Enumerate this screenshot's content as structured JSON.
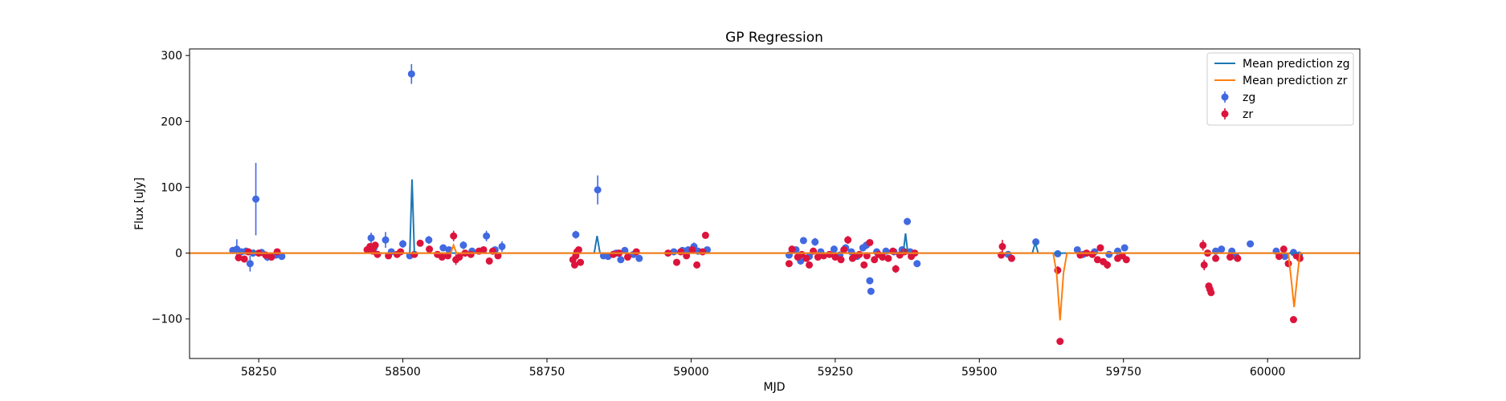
{
  "chart_data": {
    "type": "scatter",
    "title": "GP Regression",
    "xlabel": "MJD",
    "ylabel": "Flux [uJy]",
    "xlim": [
      58130,
      60160
    ],
    "ylim": [
      -160,
      310
    ],
    "xticks": [
      58250,
      58500,
      58750,
      59000,
      59250,
      59500,
      59750,
      60000
    ],
    "yticks": [
      -100,
      0,
      100,
      200,
      300
    ],
    "grid": false,
    "legend_position": "top-right",
    "series": [
      {
        "name": "Mean prediction zg",
        "kind": "line",
        "color": "#1f77b4",
        "x": [
          58130,
          58238,
          58242,
          58246,
          58505,
          58512,
          58516,
          58520,
          58832,
          58837,
          58842,
          59368,
          59372,
          59376,
          59592,
          59597,
          59602,
          60160
        ],
        "y": [
          0,
          0,
          4,
          0,
          0,
          0,
          112,
          0,
          0,
          26,
          0,
          0,
          30,
          0,
          0,
          16,
          0,
          0
        ]
      },
      {
        "name": "Mean prediction zr",
        "kind": "line",
        "color": "#ff7f0e",
        "x": [
          58130,
          58583,
          58588,
          58593,
          59628,
          59634,
          59640,
          59646,
          59652,
          60036,
          60041,
          60046,
          60051,
          60056,
          60160
        ],
        "y": [
          0,
          0,
          12,
          0,
          0,
          -30,
          -102,
          -30,
          0,
          0,
          -40,
          -82,
          -40,
          0,
          0
        ]
      },
      {
        "name": "zg",
        "kind": "points",
        "color": "#4169e1",
        "points": [
          [
            58205,
            4,
            4
          ],
          [
            58212,
            6,
            15
          ],
          [
            58220,
            2,
            4
          ],
          [
            58228,
            3,
            4
          ],
          [
            58235,
            -16,
            12
          ],
          [
            58240,
            0,
            4
          ],
          [
            58245,
            82,
            55
          ],
          [
            58255,
            1,
            3
          ],
          [
            58265,
            -6,
            6
          ],
          [
            58280,
            -3,
            4
          ],
          [
            58290,
            -5,
            4
          ],
          [
            58445,
            23,
            8
          ],
          [
            58450,
            8,
            4
          ],
          [
            58470,
            20,
            12
          ],
          [
            58480,
            2,
            4
          ],
          [
            58500,
            14,
            6
          ],
          [
            58512,
            -4,
            4
          ],
          [
            58515,
            272,
            15
          ],
          [
            58545,
            20,
            6
          ],
          [
            58570,
            8,
            4
          ],
          [
            58580,
            5,
            4
          ],
          [
            58605,
            12,
            6
          ],
          [
            58620,
            3,
            4
          ],
          [
            58645,
            26,
            8
          ],
          [
            58660,
            5,
            4
          ],
          [
            58672,
            10,
            8
          ],
          [
            58800,
            28,
            6
          ],
          [
            58838,
            96,
            22
          ],
          [
            58848,
            -4,
            3
          ],
          [
            58856,
            -5,
            3
          ],
          [
            58870,
            0,
            4
          ],
          [
            58878,
            -10,
            4
          ],
          [
            58885,
            4,
            4
          ],
          [
            58900,
            -2,
            4
          ],
          [
            58910,
            -8,
            4
          ],
          [
            58970,
            2,
            4
          ],
          [
            58985,
            4,
            4
          ],
          [
            58995,
            5,
            4
          ],
          [
            59005,
            10,
            6
          ],
          [
            59012,
            3,
            4
          ],
          [
            59028,
            5,
            4
          ],
          [
            59170,
            -3,
            4
          ],
          [
            59182,
            5,
            4
          ],
          [
            59190,
            -12,
            4
          ],
          [
            59195,
            19,
            5
          ],
          [
            59205,
            -5,
            4
          ],
          [
            59215,
            17,
            6
          ],
          [
            59225,
            2,
            4
          ],
          [
            59248,
            6,
            4
          ],
          [
            59258,
            -3,
            4
          ],
          [
            59268,
            8,
            4
          ],
          [
            59278,
            2,
            4
          ],
          [
            59288,
            -5,
            4
          ],
          [
            59298,
            8,
            4
          ],
          [
            59304,
            12,
            6
          ],
          [
            59310,
            -42,
            4
          ],
          [
            59312,
            -58,
            4
          ],
          [
            59322,
            2,
            4
          ],
          [
            59338,
            3,
            4
          ],
          [
            59352,
            2,
            4
          ],
          [
            59366,
            5,
            4
          ],
          [
            59375,
            48,
            4
          ],
          [
            59380,
            2,
            4
          ],
          [
            59392,
            -16,
            4
          ],
          [
            59550,
            -2,
            3
          ],
          [
            59598,
            17,
            4
          ],
          [
            59636,
            -1,
            3
          ],
          [
            59670,
            5,
            3
          ],
          [
            59680,
            -2,
            3
          ],
          [
            59700,
            2,
            3
          ],
          [
            59725,
            -2,
            3
          ],
          [
            59740,
            3,
            3
          ],
          [
            59752,
            8,
            3
          ],
          [
            59910,
            3,
            3
          ],
          [
            59920,
            6,
            3
          ],
          [
            59938,
            3,
            3
          ],
          [
            59945,
            -5,
            3
          ],
          [
            59970,
            14,
            4
          ],
          [
            60015,
            3,
            3
          ],
          [
            60030,
            -5,
            3
          ],
          [
            60045,
            1,
            3
          ],
          [
            60055,
            -3,
            3
          ]
        ]
      },
      {
        "name": "zr",
        "kind": "points",
        "color": "#dc143c",
        "points": [
          [
            58215,
            -7,
            4
          ],
          [
            58225,
            -9,
            4
          ],
          [
            58232,
            2,
            4
          ],
          [
            58250,
            0,
            4
          ],
          [
            58262,
            -3,
            4
          ],
          [
            58272,
            -6,
            4
          ],
          [
            58282,
            2,
            4
          ],
          [
            58438,
            5,
            4
          ],
          [
            58443,
            10,
            4
          ],
          [
            58448,
            3,
            4
          ],
          [
            58452,
            12,
            4
          ],
          [
            58456,
            -2,
            4
          ],
          [
            58475,
            -4,
            4
          ],
          [
            58490,
            -2,
            4
          ],
          [
            58496,
            2,
            4
          ],
          [
            58520,
            -2,
            4
          ],
          [
            58530,
            15,
            4
          ],
          [
            58546,
            6,
            4
          ],
          [
            58560,
            -2,
            4
          ],
          [
            58568,
            -6,
            4
          ],
          [
            58578,
            -4,
            4
          ],
          [
            58588,
            26,
            8
          ],
          [
            58592,
            -10,
            8
          ],
          [
            58598,
            -6,
            4
          ],
          [
            58608,
            0,
            4
          ],
          [
            58618,
            -2,
            4
          ],
          [
            58632,
            3,
            4
          ],
          [
            58640,
            5,
            4
          ],
          [
            58650,
            -12,
            4
          ],
          [
            58656,
            3,
            4
          ],
          [
            58665,
            -4,
            4
          ],
          [
            58795,
            -10,
            4
          ],
          [
            58798,
            -18,
            4
          ],
          [
            58800,
            -4,
            4
          ],
          [
            58802,
            2,
            4
          ],
          [
            58805,
            5,
            4
          ],
          [
            58808,
            -14,
            4
          ],
          [
            58865,
            -2,
            4
          ],
          [
            58875,
            0,
            4
          ],
          [
            58890,
            -6,
            4
          ],
          [
            58905,
            2,
            4
          ],
          [
            58960,
            0,
            4
          ],
          [
            58975,
            -14,
            4
          ],
          [
            58982,
            2,
            4
          ],
          [
            58992,
            -4,
            4
          ],
          [
            59002,
            5,
            4
          ],
          [
            59010,
            -18,
            4
          ],
          [
            59020,
            2,
            4
          ],
          [
            59025,
            27,
            4
          ],
          [
            59170,
            -16,
            4
          ],
          [
            59175,
            6,
            4
          ],
          [
            59185,
            -6,
            4
          ],
          [
            59192,
            -2,
            4
          ],
          [
            59200,
            -8,
            4
          ],
          [
            59205,
            -18,
            4
          ],
          [
            59212,
            3,
            4
          ],
          [
            59220,
            -6,
            4
          ],
          [
            59230,
            -4,
            4
          ],
          [
            59240,
            -2,
            4
          ],
          [
            59250,
            -6,
            4
          ],
          [
            59260,
            -10,
            4
          ],
          [
            59265,
            5,
            4
          ],
          [
            59272,
            20,
            6
          ],
          [
            59280,
            -8,
            4
          ],
          [
            59285,
            -4,
            4
          ],
          [
            59292,
            -2,
            4
          ],
          [
            59300,
            -18,
            4
          ],
          [
            59305,
            -4,
            4
          ],
          [
            59310,
            16,
            4
          ],
          [
            59318,
            -10,
            4
          ],
          [
            59325,
            -2,
            4
          ],
          [
            59332,
            -6,
            4
          ],
          [
            59342,
            -8,
            4
          ],
          [
            59350,
            3,
            4
          ],
          [
            59355,
            -24,
            6
          ],
          [
            59362,
            -3,
            4
          ],
          [
            59370,
            2,
            4
          ],
          [
            59382,
            -5,
            4
          ],
          [
            59388,
            0,
            4
          ],
          [
            59538,
            -3,
            4
          ],
          [
            59540,
            10,
            10
          ],
          [
            59556,
            -8,
            4
          ],
          [
            59636,
            -26,
            6
          ],
          [
            59640,
            -134,
            4
          ],
          [
            59675,
            -3,
            4
          ],
          [
            59686,
            0,
            4
          ],
          [
            59696,
            -2,
            4
          ],
          [
            59705,
            -10,
            4
          ],
          [
            59710,
            8,
            4
          ],
          [
            59715,
            -13,
            4
          ],
          [
            59722,
            -18,
            6
          ],
          [
            59740,
            -8,
            4
          ],
          [
            59748,
            -4,
            4
          ],
          [
            59755,
            -10,
            4
          ],
          [
            59888,
            12,
            8
          ],
          [
            59890,
            -18,
            8
          ],
          [
            59896,
            0,
            4
          ],
          [
            59898,
            -50,
            4
          ],
          [
            59900,
            -55,
            4
          ],
          [
            59902,
            -60,
            4
          ],
          [
            59910,
            -8,
            4
          ],
          [
            59935,
            -6,
            4
          ],
          [
            59948,
            -8,
            4
          ],
          [
            60020,
            -5,
            4
          ],
          [
            60028,
            6,
            4
          ],
          [
            60036,
            -16,
            4
          ],
          [
            60045,
            -101,
            4
          ],
          [
            60050,
            -4,
            4
          ],
          [
            60056,
            -8,
            4
          ]
        ]
      }
    ]
  }
}
